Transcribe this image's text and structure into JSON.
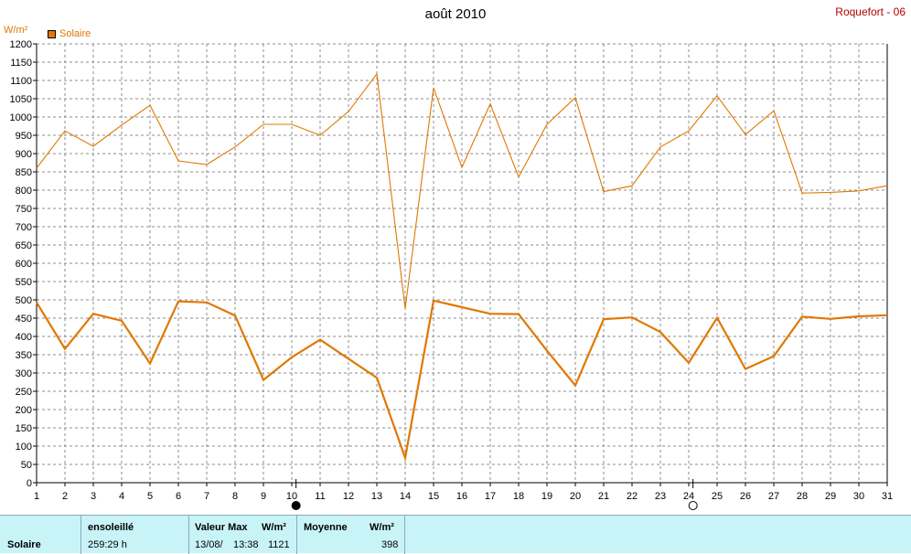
{
  "header": {
    "title": "août 2010",
    "station": "Roquefort - 06"
  },
  "legend": {
    "label": "Solaire",
    "color": "#e07800"
  },
  "chart_data": {
    "type": "line",
    "ylabel": "W/m²",
    "ylim": [
      0,
      1200
    ],
    "yticks": [
      0,
      50,
      100,
      150,
      200,
      250,
      300,
      350,
      400,
      450,
      500,
      550,
      600,
      650,
      700,
      750,
      800,
      850,
      900,
      950,
      1000,
      1050,
      1100,
      1150,
      1200
    ],
    "x": [
      1,
      2,
      3,
      4,
      5,
      6,
      7,
      8,
      9,
      10,
      11,
      12,
      13,
      14,
      15,
      16,
      17,
      18,
      19,
      20,
      21,
      22,
      23,
      24,
      25,
      26,
      27,
      28,
      29,
      30,
      31
    ],
    "grid": true,
    "series": [
      {
        "role": "max",
        "color": "#e07800",
        "values": [
          860,
          962,
          920,
          978,
          1032,
          880,
          870,
          918,
          980,
          980,
          950,
          1015,
          1118,
          476,
          1080,
          862,
          1036,
          836,
          980,
          1053,
          796,
          812,
          918,
          962,
          1058,
          952,
          1017,
          792,
          794,
          798,
          812
        ]
      },
      {
        "name": "Solaire",
        "role": "mean",
        "color": "#e07800",
        "values": [
          493,
          366,
          462,
          443,
          326,
          496,
          493,
          457,
          281,
          343,
          391,
          339,
          287,
          68,
          498,
          480,
          462,
          461,
          361,
          266,
          447,
          452,
          412,
          328,
          451,
          311,
          346,
          454,
          448,
          455,
          458
        ]
      }
    ],
    "markers": [
      {
        "day": 10,
        "symbol": "new-moon"
      },
      {
        "day": 24,
        "symbol": "full-moon"
      }
    ]
  },
  "footer": {
    "row_label": "Solaire",
    "sunshine_header": "ensoleillé",
    "sunshine_value": "259:29 h",
    "max_header": "Valeur Max",
    "max_unit": "W/m²",
    "max_date": "13/08/",
    "max_time": "13:38",
    "max_value": "1121",
    "mean_header": "Moyenne",
    "mean_unit": "W/m²",
    "mean_value": "398"
  }
}
